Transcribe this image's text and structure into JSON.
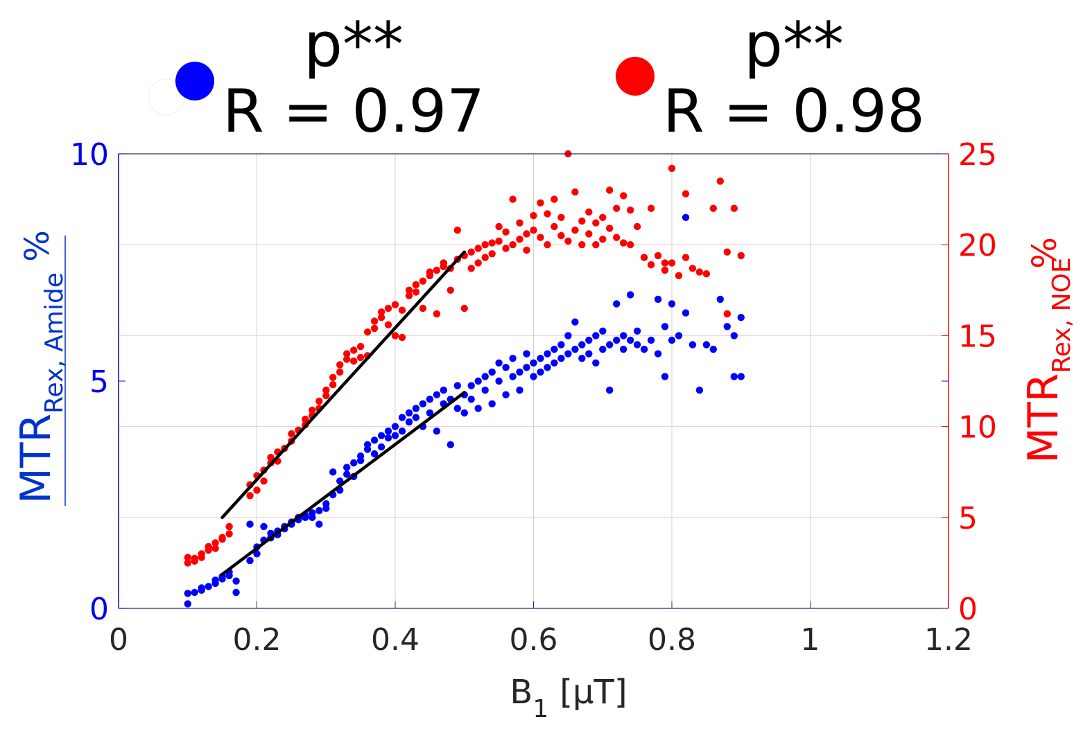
{
  "chart_data": {
    "type": "scatter",
    "x_axis": {
      "label_main": "B",
      "label_sub": "1",
      "label_unit": "[μT]",
      "range": [
        0,
        1.2
      ],
      "ticks": [
        0,
        0.2,
        0.4,
        0.6,
        0.8,
        1,
        1.2
      ],
      "tick_labels": [
        "0",
        "0.2",
        "0.4",
        "0.6",
        "0.8",
        "1",
        "1.2"
      ],
      "grid": true
    },
    "y_left": {
      "label_main": "MTR",
      "label_sub": "Rex, Amide",
      "label_unit": "%",
      "range": [
        0,
        10
      ],
      "ticks": [
        0,
        5,
        10
      ],
      "tick_labels": [
        "0",
        "5",
        "10"
      ],
      "color": "#0000ee"
    },
    "y_right": {
      "label_main": "MTR",
      "label_sub": "Rex, NOE",
      "label_unit": "%",
      "range": [
        0,
        25
      ],
      "ticks": [
        0,
        5,
        10,
        15,
        20,
        25
      ],
      "tick_labels": [
        "0",
        "5",
        "10",
        "15",
        "20",
        "25"
      ],
      "color": "#ff0000"
    },
    "legend": {
      "placement": "top",
      "entries": [
        {
          "series": "Amide",
          "color": "#0000ff",
          "significance": "p**",
          "correlation": "R = 0.97"
        },
        {
          "series": "NOE",
          "color": "#ff0000",
          "significance": "p**",
          "correlation": "R = 0.98"
        }
      ]
    },
    "series": [
      {
        "name": "Amide",
        "axis": "left",
        "color": "#0000ff",
        "points": [
          [
            0.1,
            0.1
          ],
          [
            0.1,
            0.33
          ],
          [
            0.11,
            0.35
          ],
          [
            0.12,
            0.4
          ],
          [
            0.12,
            0.45
          ],
          [
            0.13,
            0.48
          ],
          [
            0.14,
            0.55
          ],
          [
            0.14,
            0.62
          ],
          [
            0.15,
            0.7
          ],
          [
            0.15,
            0.65
          ],
          [
            0.16,
            0.72
          ],
          [
            0.16,
            0.8
          ],
          [
            0.17,
            0.35
          ],
          [
            0.17,
            0.6
          ],
          [
            0.19,
            1.05
          ],
          [
            0.19,
            1.85
          ],
          [
            0.2,
            1.2
          ],
          [
            0.2,
            1.35
          ],
          [
            0.21,
            1.5
          ],
          [
            0.21,
            1.8
          ],
          [
            0.22,
            1.55
          ],
          [
            0.22,
            1.65
          ],
          [
            0.23,
            1.7
          ],
          [
            0.23,
            1.62
          ],
          [
            0.24,
            1.8
          ],
          [
            0.24,
            1.75
          ],
          [
            0.25,
            1.9
          ],
          [
            0.25,
            1.85
          ],
          [
            0.26,
            1.95
          ],
          [
            0.26,
            2.0
          ],
          [
            0.27,
            2.05
          ],
          [
            0.27,
            2.0
          ],
          [
            0.28,
            2.1
          ],
          [
            0.28,
            2.0
          ],
          [
            0.29,
            1.85
          ],
          [
            0.29,
            2.15
          ],
          [
            0.3,
            2.2
          ],
          [
            0.3,
            2.3
          ],
          [
            0.31,
            3.0
          ],
          [
            0.31,
            2.5
          ],
          [
            0.32,
            2.6
          ],
          [
            0.32,
            2.8
          ],
          [
            0.33,
            2.95
          ],
          [
            0.33,
            3.1
          ],
          [
            0.34,
            2.9
          ],
          [
            0.34,
            3.2
          ],
          [
            0.35,
            3.25
          ],
          [
            0.35,
            3.35
          ],
          [
            0.36,
            3.5
          ],
          [
            0.36,
            3.6
          ],
          [
            0.37,
            3.4
          ],
          [
            0.37,
            3.7
          ],
          [
            0.38,
            3.55
          ],
          [
            0.38,
            3.8
          ],
          [
            0.39,
            3.75
          ],
          [
            0.39,
            3.9
          ],
          [
            0.4,
            3.8
          ],
          [
            0.4,
            4.0
          ],
          [
            0.41,
            4.2
          ],
          [
            0.41,
            3.9
          ],
          [
            0.42,
            4.3
          ],
          [
            0.42,
            4.1
          ],
          [
            0.43,
            4.4
          ],
          [
            0.43,
            4.2
          ],
          [
            0.44,
            4.5
          ],
          [
            0.44,
            4.0
          ],
          [
            0.45,
            4.3
          ],
          [
            0.45,
            4.6
          ],
          [
            0.46,
            4.7
          ],
          [
            0.46,
            3.9
          ],
          [
            0.47,
            4.8
          ],
          [
            0.47,
            4.5
          ],
          [
            0.48,
            4.6
          ],
          [
            0.48,
            3.6
          ],
          [
            0.49,
            4.4
          ],
          [
            0.49,
            4.9
          ],
          [
            0.5,
            4.7
          ],
          [
            0.5,
            4.3
          ],
          [
            0.51,
            4.9
          ],
          [
            0.51,
            4.6
          ],
          [
            0.52,
            5.0
          ],
          [
            0.52,
            4.4
          ],
          [
            0.53,
            5.1
          ],
          [
            0.53,
            4.8
          ],
          [
            0.54,
            5.2
          ],
          [
            0.54,
            4.5
          ],
          [
            0.55,
            5.0
          ],
          [
            0.55,
            5.4
          ],
          [
            0.56,
            5.3
          ],
          [
            0.56,
            4.7
          ],
          [
            0.57,
            5.5
          ],
          [
            0.57,
            5.1
          ],
          [
            0.58,
            5.2
          ],
          [
            0.58,
            4.8
          ],
          [
            0.59,
            5.6
          ],
          [
            0.59,
            5.3
          ],
          [
            0.6,
            5.4
          ],
          [
            0.6,
            5.1
          ],
          [
            0.61,
            5.5
          ],
          [
            0.61,
            5.2
          ],
          [
            0.62,
            5.6
          ],
          [
            0.62,
            5.3
          ],
          [
            0.63,
            5.7
          ],
          [
            0.63,
            5.4
          ],
          [
            0.64,
            5.8
          ],
          [
            0.64,
            5.5
          ],
          [
            0.65,
            6.0
          ],
          [
            0.65,
            5.6
          ],
          [
            0.66,
            6.3
          ],
          [
            0.66,
            5.7
          ],
          [
            0.67,
            5.8
          ],
          [
            0.67,
            5.5
          ],
          [
            0.68,
            5.9
          ],
          [
            0.68,
            5.6
          ],
          [
            0.69,
            6.0
          ],
          [
            0.69,
            5.4
          ],
          [
            0.7,
            5.7
          ],
          [
            0.7,
            6.1
          ],
          [
            0.71,
            5.8
          ],
          [
            0.71,
            4.8
          ],
          [
            0.72,
            5.9
          ],
          [
            0.72,
            6.7
          ],
          [
            0.73,
            6.0
          ],
          [
            0.73,
            5.7
          ],
          [
            0.74,
            5.9
          ],
          [
            0.74,
            6.9
          ],
          [
            0.75,
            5.8
          ],
          [
            0.75,
            6.1
          ],
          [
            0.76,
            5.7
          ],
          [
            0.77,
            5.9
          ],
          [
            0.78,
            6.8
          ],
          [
            0.78,
            5.6
          ],
          [
            0.79,
            6.2
          ],
          [
            0.79,
            5.1
          ],
          [
            0.8,
            6.7
          ],
          [
            0.8,
            5.9
          ],
          [
            0.81,
            6.0
          ],
          [
            0.82,
            8.6
          ],
          [
            0.82,
            6.5
          ],
          [
            0.83,
            5.8
          ],
          [
            0.84,
            4.8
          ],
          [
            0.85,
            5.8
          ],
          [
            0.86,
            5.7
          ],
          [
            0.87,
            6.8
          ],
          [
            0.88,
            6.2
          ],
          [
            0.89,
            5.1
          ],
          [
            0.89,
            6.0
          ],
          [
            0.9,
            6.4
          ],
          [
            0.9,
            5.1
          ]
        ],
        "fit_line": [
          [
            0.15,
            0.75
          ],
          [
            0.5,
            4.75
          ]
        ]
      },
      {
        "name": "NOE",
        "axis": "right",
        "color": "#ff0000",
        "points": [
          [
            0.1,
            2.5
          ],
          [
            0.1,
            2.8
          ],
          [
            0.11,
            2.6
          ],
          [
            0.11,
            2.75
          ],
          [
            0.12,
            2.8
          ],
          [
            0.12,
            3.0
          ],
          [
            0.13,
            3.2
          ],
          [
            0.13,
            3.4
          ],
          [
            0.14,
            3.3
          ],
          [
            0.14,
            3.6
          ],
          [
            0.15,
            3.8
          ],
          [
            0.15,
            3.9
          ],
          [
            0.16,
            4.1
          ],
          [
            0.16,
            4.5
          ],
          [
            0.19,
            6.2
          ],
          [
            0.19,
            6.8
          ],
          [
            0.2,
            6.5
          ],
          [
            0.2,
            7.3
          ],
          [
            0.21,
            7.6
          ],
          [
            0.21,
            7.0
          ],
          [
            0.22,
            8.0
          ],
          [
            0.22,
            8.3
          ],
          [
            0.23,
            8.1
          ],
          [
            0.23,
            8.6
          ],
          [
            0.24,
            8.8
          ],
          [
            0.25,
            9.2
          ],
          [
            0.25,
            9.6
          ],
          [
            0.26,
            9.8
          ],
          [
            0.27,
            10.1
          ],
          [
            0.27,
            10.4
          ],
          [
            0.28,
            10.6
          ],
          [
            0.28,
            10.9
          ],
          [
            0.29,
            11.0
          ],
          [
            0.29,
            11.4
          ],
          [
            0.3,
            11.7
          ],
          [
            0.3,
            12.0
          ],
          [
            0.31,
            12.3
          ],
          [
            0.31,
            12.7
          ],
          [
            0.32,
            13.0
          ],
          [
            0.32,
            13.4
          ],
          [
            0.33,
            13.7
          ],
          [
            0.33,
            14.0
          ],
          [
            0.34,
            14.2
          ],
          [
            0.34,
            13.6
          ],
          [
            0.35,
            13.8
          ],
          [
            0.35,
            14.4
          ],
          [
            0.36,
            13.9
          ],
          [
            0.36,
            15.2
          ],
          [
            0.37,
            15.4
          ],
          [
            0.37,
            15.8
          ],
          [
            0.38,
            16.0
          ],
          [
            0.38,
            16.3
          ],
          [
            0.39,
            16.5
          ],
          [
            0.39,
            15.6
          ],
          [
            0.4,
            16.7
          ],
          [
            0.4,
            15.0
          ],
          [
            0.41,
            16.4
          ],
          [
            0.41,
            14.9
          ],
          [
            0.42,
            17.2
          ],
          [
            0.42,
            17.5
          ],
          [
            0.43,
            17.8
          ],
          [
            0.43,
            17.4
          ],
          [
            0.44,
            18.0
          ],
          [
            0.44,
            16.5
          ],
          [
            0.45,
            18.3
          ],
          [
            0.45,
            18.5
          ],
          [
            0.46,
            18.6
          ],
          [
            0.46,
            16.2
          ],
          [
            0.47,
            18.8
          ],
          [
            0.47,
            19.0
          ],
          [
            0.48,
            18.7
          ],
          [
            0.48,
            17.5
          ],
          [
            0.49,
            19.2
          ],
          [
            0.49,
            20.8
          ],
          [
            0.5,
            19.4
          ],
          [
            0.5,
            16.5
          ],
          [
            0.51,
            19.6
          ],
          [
            0.51,
            18.7
          ],
          [
            0.52,
            19.8
          ],
          [
            0.52,
            19.0
          ],
          [
            0.53,
            20.0
          ],
          [
            0.53,
            19.3
          ],
          [
            0.54,
            20.1
          ],
          [
            0.54,
            19.5
          ],
          [
            0.55,
            20.2
          ],
          [
            0.55,
            21.0
          ],
          [
            0.56,
            19.8
          ],
          [
            0.56,
            20.7
          ],
          [
            0.57,
            22.5
          ],
          [
            0.57,
            20.0
          ],
          [
            0.58,
            20.3
          ],
          [
            0.58,
            21.2
          ],
          [
            0.59,
            20.6
          ],
          [
            0.59,
            19.7
          ],
          [
            0.6,
            20.8
          ],
          [
            0.6,
            21.6
          ],
          [
            0.61,
            20.4
          ],
          [
            0.61,
            22.3
          ],
          [
            0.62,
            21.7
          ],
          [
            0.62,
            20.0
          ],
          [
            0.63,
            22.5
          ],
          [
            0.63,
            21.0
          ],
          [
            0.64,
            20.5
          ],
          [
            0.64,
            21.5
          ],
          [
            0.65,
            25.0
          ],
          [
            0.65,
            20.2
          ],
          [
            0.66,
            22.9
          ],
          [
            0.66,
            20.8
          ],
          [
            0.67,
            21.3
          ],
          [
            0.67,
            20.0
          ],
          [
            0.68,
            21.8
          ],
          [
            0.68,
            20.6
          ],
          [
            0.69,
            21.2
          ],
          [
            0.69,
            20.0
          ],
          [
            0.7,
            21.5
          ],
          [
            0.7,
            20.3
          ],
          [
            0.71,
            23.0
          ],
          [
            0.71,
            20.9
          ],
          [
            0.72,
            22.0
          ],
          [
            0.72,
            20.4
          ],
          [
            0.73,
            22.7
          ],
          [
            0.73,
            20.1
          ],
          [
            0.74,
            21.9
          ],
          [
            0.74,
            20.0
          ],
          [
            0.75,
            21.0
          ],
          [
            0.76,
            19.3
          ],
          [
            0.77,
            22.0
          ],
          [
            0.77,
            18.9
          ],
          [
            0.78,
            19.4
          ],
          [
            0.79,
            18.6
          ],
          [
            0.79,
            19.0
          ],
          [
            0.8,
            24.2
          ],
          [
            0.8,
            19.0
          ],
          [
            0.81,
            18.3
          ],
          [
            0.82,
            22.8
          ],
          [
            0.82,
            19.3
          ],
          [
            0.83,
            18.7
          ],
          [
            0.84,
            18.5
          ],
          [
            0.85,
            18.4
          ],
          [
            0.86,
            22.0
          ],
          [
            0.87,
            23.5
          ],
          [
            0.88,
            19.6
          ],
          [
            0.88,
            16.2
          ],
          [
            0.89,
            22.0
          ],
          [
            0.9,
            19.4
          ]
        ],
        "fit_line": [
          [
            0.15,
            5.0
          ],
          [
            0.5,
            19.6
          ]
        ]
      }
    ]
  }
}
